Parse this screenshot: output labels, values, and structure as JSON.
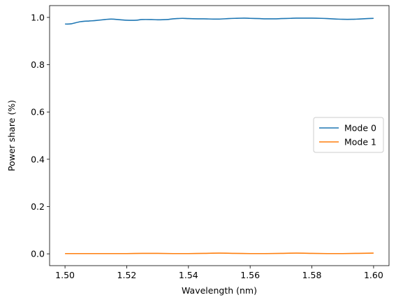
{
  "chart_data": {
    "type": "line",
    "title": "",
    "xlabel": "Wavelength (nm)",
    "ylabel": "Power share (%)",
    "xlim": [
      1.495,
      1.605
    ],
    "ylim": [
      -0.05,
      1.05
    ],
    "xticks": [
      1.5,
      1.52,
      1.54,
      1.56,
      1.58,
      1.6
    ],
    "xtick_labels": [
      "1.50",
      "1.52",
      "1.54",
      "1.56",
      "1.58",
      "1.60"
    ],
    "yticks": [
      0.0,
      0.2,
      0.4,
      0.6,
      0.8,
      1.0
    ],
    "ytick_labels": [
      "0.0",
      "0.2",
      "0.4",
      "0.6",
      "0.8",
      "1.0"
    ],
    "grid": false,
    "legend_position": "center-right",
    "series": [
      {
        "name": "Mode 0",
        "color": "#1f77b4",
        "x": [
          1.5,
          1.502,
          1.505,
          1.508,
          1.51,
          1.513,
          1.515,
          1.518,
          1.52,
          1.523,
          1.525,
          1.528,
          1.53,
          1.533,
          1.535,
          1.538,
          1.54,
          1.543,
          1.545,
          1.548,
          1.55,
          1.553,
          1.555,
          1.558,
          1.56,
          1.563,
          1.565,
          1.568,
          1.57,
          1.573,
          1.575,
          1.578,
          1.58,
          1.583,
          1.585,
          1.588,
          1.59,
          1.593,
          1.595,
          1.598,
          1.6
        ],
        "y": [
          0.972,
          0.973,
          0.982,
          0.985,
          0.987,
          0.991,
          0.993,
          0.99,
          0.988,
          0.988,
          0.991,
          0.991,
          0.99,
          0.991,
          0.994,
          0.996,
          0.995,
          0.994,
          0.994,
          0.993,
          0.993,
          0.995,
          0.996,
          0.997,
          0.996,
          0.995,
          0.994,
          0.994,
          0.995,
          0.996,
          0.997,
          0.997,
          0.997,
          0.996,
          0.995,
          0.993,
          0.992,
          0.992,
          0.993,
          0.995,
          0.996
        ]
      },
      {
        "name": "Mode 1",
        "color": "#ff7f0e",
        "x": [
          1.5,
          1.505,
          1.51,
          1.515,
          1.52,
          1.525,
          1.53,
          1.535,
          1.54,
          1.545,
          1.55,
          1.555,
          1.56,
          1.565,
          1.57,
          1.575,
          1.58,
          1.585,
          1.59,
          1.595,
          1.6
        ],
        "y": [
          0.001,
          0.001,
          0.001,
          0.001,
          0.001,
          0.002,
          0.002,
          0.001,
          0.001,
          0.002,
          0.003,
          0.002,
          0.001,
          0.001,
          0.002,
          0.003,
          0.002,
          0.001,
          0.001,
          0.002,
          0.003
        ]
      }
    ]
  }
}
